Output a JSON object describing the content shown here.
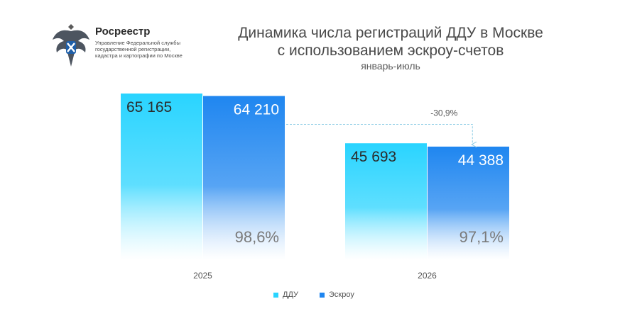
{
  "header": {
    "org_name": "Росреестр",
    "org_subtitle": "Управление Федеральной службы государственной регистрации, кадастра и картографии по Москве",
    "title_line1": "Динамика числа регистраций ДДУ в Москве",
    "title_line2": "с использованием эскроу-счетов",
    "subtitle": "январь-июль"
  },
  "colors": {
    "ddu_top": "#29d4ff",
    "ddu_bottom": "#ffffff",
    "escrow_top": "#1f86f0",
    "escrow_bottom": "#ffffff",
    "text_dark": "#2b2b2b",
    "text_light": "#ffffff",
    "pct_text": "#7a7a7a",
    "annotation_line": "#8fcde6",
    "logo_blue": "#1f5fa8"
  },
  "chart_data": {
    "type": "bar",
    "categories": [
      "2025",
      "2026"
    ],
    "series": [
      {
        "name": "ДДУ",
        "values": [
          65165,
          45693
        ],
        "labels": [
          "65 165",
          "45 693"
        ]
      },
      {
        "name": "Эскроу",
        "values": [
          64210,
          44388
        ],
        "labels": [
          "64 210",
          "44 388"
        ],
        "share_labels": [
          "98,6%",
          "97,1%"
        ]
      }
    ],
    "annotation": {
      "text": "-30,9%",
      "from": "Эскроу 2025",
      "to": "Эскроу 2026"
    },
    "legend_position": "bottom",
    "grid": false,
    "ylim": [
      0,
      65165
    ]
  },
  "legend": {
    "items": [
      {
        "label": "ДДУ",
        "color": "#29d4ff"
      },
      {
        "label": "Эскроу",
        "color": "#1f86f0"
      }
    ]
  }
}
